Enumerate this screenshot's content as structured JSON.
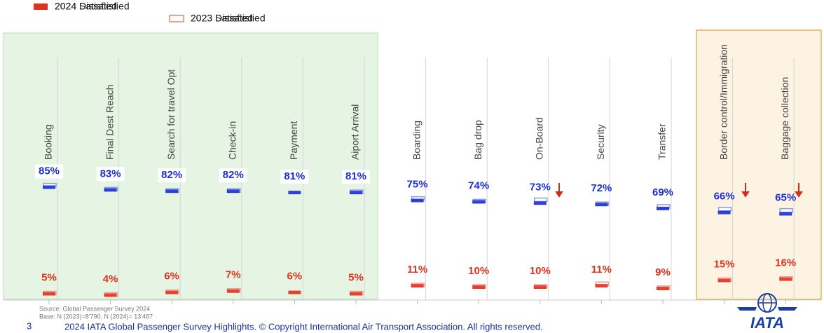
{
  "chart_data": {
    "type": "marker",
    "categories": [
      "Booking",
      "Final Dest Reach",
      "Search for travel Opt",
      "Check-in",
      "Payment",
      "Aiport Arrival",
      "Boarding",
      "Bag drop",
      "On-Board",
      "Security",
      "Transfer",
      "Border control/Immigration",
      "Baggage collection"
    ],
    "series": [
      {
        "name": "2024 Satisfied",
        "color": "#1b2fd4",
        "values": [
          85,
          83,
          82,
          82,
          81,
          81,
          75,
          74,
          73,
          72,
          69,
          66,
          65
        ],
        "value_labels": [
          "85%",
          "83%",
          "82%",
          "82%",
          "81%",
          "81%",
          "75%",
          "74%",
          "73%",
          "72%",
          "69%",
          "66%",
          "65%"
        ]
      },
      {
        "name": "2023 Satisfied",
        "color": "#8c9be6",
        "values": [
          86,
          83,
          82,
          82,
          null,
          81,
          76,
          74,
          75,
          72,
          70,
          68,
          67
        ]
      },
      {
        "name": "2024 Dissatisfied",
        "color": "#e0301e",
        "values": [
          5,
          4,
          6,
          7,
          6,
          5,
          11,
          10,
          10,
          11,
          9,
          15,
          16
        ],
        "value_labels": [
          "5%",
          "4%",
          "6%",
          "7%",
          "6%",
          "5%",
          "11%",
          "10%",
          "10%",
          "11%",
          "9%",
          "15%",
          "16%"
        ]
      },
      {
        "name": "2023 Dissatisfied",
        "color": "#f0a090",
        "values": [
          5,
          4,
          6,
          7,
          null,
          5,
          11,
          10,
          10,
          12,
          9,
          15,
          16
        ]
      }
    ]
  },
  "source": "Source: Global Passenger Survey 2024",
  "base": "Base: N (2023)=8'790, N (2024)= 13'487",
  "footer": "2024 IATA Global Passenger Survey Highlights. © Copyright International Air Transport Association.  All rights reserved.",
  "page_number": "3",
  "logo": "IATA"
}
